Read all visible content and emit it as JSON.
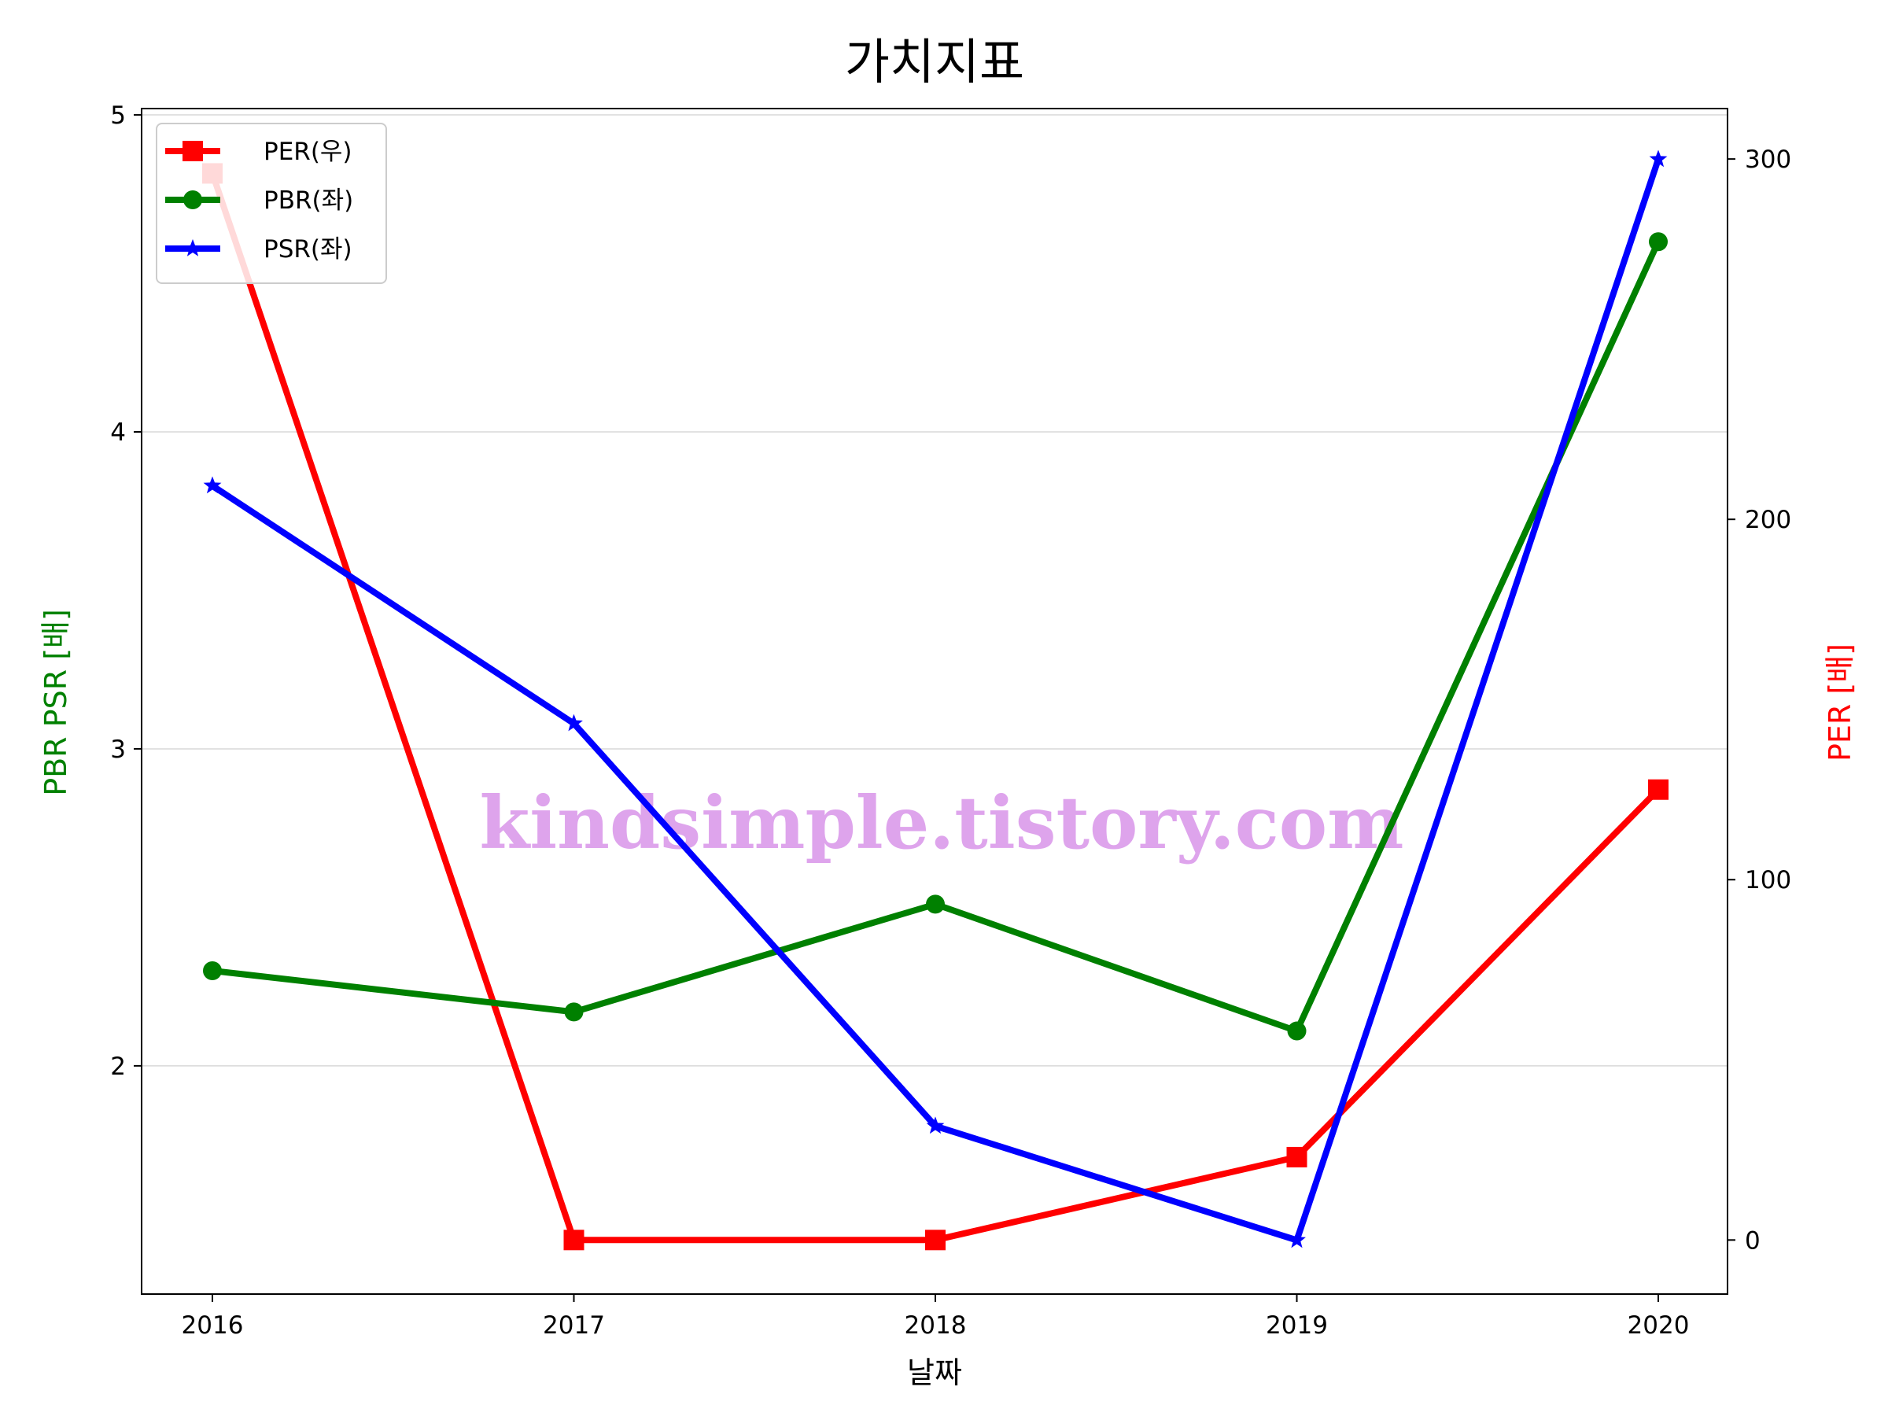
{
  "chart_data": {
    "type": "line",
    "title": "가치지표",
    "xlabel": "날짜",
    "ylabel_left": "PBR PSR [배]",
    "ylabel_right": "PER [배]",
    "categories": [
      "2016",
      "2017",
      "2018",
      "2019",
      "2020"
    ],
    "ylim_left": [
      1.28,
      5.02
    ],
    "ylim_right": [
      -15,
      314
    ],
    "yticks_left": [
      "2",
      "3",
      "4",
      "5"
    ],
    "yticks_right": [
      "0",
      "100",
      "200",
      "300"
    ],
    "series": [
      {
        "name": "PER(우)",
        "axis": "right",
        "color": "#ff0000",
        "marker": "square",
        "values": [
          296,
          0,
          0,
          23,
          125
        ]
      },
      {
        "name": "PBR(좌)",
        "axis": "left",
        "color": "#008000",
        "marker": "circle",
        "values": [
          2.3,
          2.17,
          2.51,
          2.11,
          4.6
        ]
      },
      {
        "name": "PSR(좌)",
        "axis": "left",
        "color": "#0000ff",
        "marker": "star",
        "values": [
          3.83,
          3.08,
          1.81,
          1.45,
          4.86
        ]
      }
    ],
    "grid": "horizontal",
    "legend_position": "upper-left"
  },
  "watermark": "kindsimple.tistory.com"
}
